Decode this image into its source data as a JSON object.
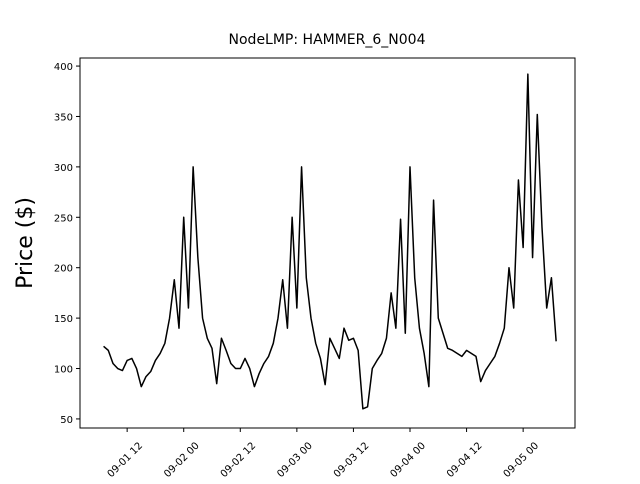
{
  "chart_data": {
    "type": "line",
    "title": "NodeLMP: HAMMER_6_N004",
    "y_label": "Price ($)",
    "color": "#000000",
    "x": [
      "09-01 07",
      "09-01 08",
      "09-01 09",
      "09-01 10",
      "09-01 11",
      "09-01 12",
      "09-01 13",
      "09-01 14",
      "09-01 15",
      "09-01 16",
      "09-01 17",
      "09-01 18",
      "09-01 19",
      "09-01 20",
      "09-01 21",
      "09-01 22",
      "09-01 23",
      "09-02 00",
      "09-02 01",
      "09-02 02",
      "09-02 03",
      "09-02 04",
      "09-02 05",
      "09-02 06",
      "09-02 07",
      "09-02 08",
      "09-02 09",
      "09-02 10",
      "09-02 11",
      "09-02 12",
      "09-02 13",
      "09-02 14",
      "09-02 15",
      "09-02 16",
      "09-02 17",
      "09-02 18",
      "09-02 19",
      "09-02 20",
      "09-02 21",
      "09-02 22",
      "09-02 23",
      "09-03 00",
      "09-03 01",
      "09-03 02",
      "09-03 03",
      "09-03 04",
      "09-03 05",
      "09-03 06",
      "09-03 07",
      "09-03 08",
      "09-03 09",
      "09-03 10",
      "09-03 11",
      "09-03 12",
      "09-03 13",
      "09-03 14",
      "09-03 15",
      "09-03 16",
      "09-03 17",
      "09-03 18",
      "09-03 19",
      "09-03 20",
      "09-03 21",
      "09-03 22",
      "09-03 23",
      "09-04 00",
      "09-04 01",
      "09-04 02",
      "09-04 03",
      "09-04 04",
      "09-04 05",
      "09-04 06",
      "09-04 07",
      "09-04 08",
      "09-04 09",
      "09-04 10",
      "09-04 11",
      "09-04 12",
      "09-04 13",
      "09-04 14",
      "09-04 15",
      "09-04 16",
      "09-04 17",
      "09-04 18",
      "09-04 19",
      "09-04 20",
      "09-04 21",
      "09-04 22",
      "09-04 23",
      "09-05 00",
      "09-05 01",
      "09-05 02",
      "09-05 03",
      "09-05 04",
      "09-05 05",
      "09-05 06",
      "09-05 07"
    ],
    "values": [
      122,
      118,
      105,
      100,
      98,
      108,
      110,
      100,
      82,
      92,
      97,
      108,
      115,
      125,
      150,
      188,
      140,
      250,
      160,
      300,
      210,
      150,
      130,
      120,
      85,
      130,
      118,
      105,
      100,
      100,
      110,
      100,
      82,
      95,
      105,
      112,
      125,
      150,
      188,
      140,
      250,
      160,
      300,
      190,
      150,
      125,
      110,
      84,
      130,
      120,
      110,
      140,
      128,
      130,
      118,
      60,
      62,
      100,
      108,
      115,
      130,
      175,
      140,
      248,
      135,
      300,
      190,
      140,
      115,
      82,
      267,
      150,
      135,
      120,
      118,
      115,
      112,
      118,
      115,
      112,
      87,
      98,
      105,
      112,
      125,
      140,
      200,
      160,
      287,
      220,
      392,
      210,
      352,
      240,
      160,
      190,
      127
    ],
    "xlim": [
      "09-01 02",
      "09-05 11"
    ],
    "xticks": [
      "09-01 12",
      "09-02 00",
      "09-02 12",
      "09-03 00",
      "09-03 12",
      "09-04 00",
      "09-04 12",
      "09-05 00"
    ],
    "ylim": [
      41,
      408
    ],
    "yticks": [
      50,
      100,
      150,
      200,
      250,
      300,
      350,
      400
    ]
  }
}
